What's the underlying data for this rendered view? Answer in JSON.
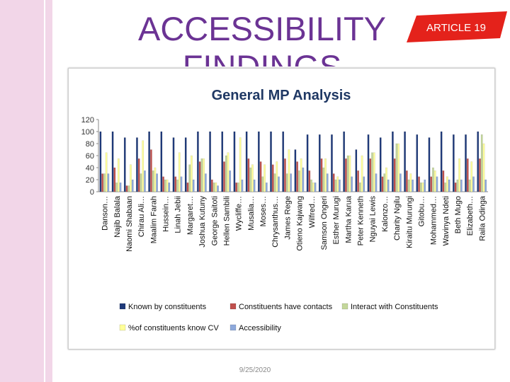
{
  "slide": {
    "title": "ACCESSIBILITY FINDINGS",
    "logo_text": "ARTICLE 19",
    "footer_date": "9/25/2020"
  },
  "colors": {
    "title": "#6b3394",
    "left_strip": "#f2d6e8",
    "logo": "#e4221b"
  },
  "chart_data": {
    "type": "bar",
    "title": "General MP Analysis",
    "ylim": [
      0,
      120
    ],
    "yticks": [
      0,
      20,
      40,
      60,
      80,
      100,
      120
    ],
    "categories": [
      "Danson…",
      "Najib Balala",
      "Naomi Shabaan",
      "Chirau Ali…",
      "Maalim Farah",
      "Hussein…",
      "Linah Jebii",
      "Margaret…",
      "Joshua Kutuny",
      "George Saitoti",
      "Hellen Sambili",
      "Wycliffe…",
      "Musalia…",
      "Moses…",
      "Chrysanthus…",
      "James Rege",
      "Otieno Kajwang",
      "Wilfred…",
      "Samson Ongeri",
      "Esther Murugi",
      "Martha Karua",
      "Peter Kenneth",
      "Nguyai Lewis",
      "Kalonzo…",
      "Charity Ngilu",
      "Kiraitu Murungi",
      "Gitobu…",
      "Mohammed…",
      "Wavinya Ndeti",
      "Beth Mugo",
      "Elizabeth…",
      "Raila Odinga"
    ],
    "series": [
      {
        "name": "Known by constituents",
        "color": "#1f3a7a",
        "values": [
          100,
          100,
          90,
          90,
          100,
          100,
          90,
          90,
          100,
          100,
          100,
          100,
          100,
          100,
          100,
          100,
          70,
          95,
          95,
          95,
          100,
          70,
          95,
          90,
          100,
          100,
          95,
          90,
          100,
          95,
          95,
          100
        ]
      },
      {
        "name": "Constituents have contacts",
        "color": "#c0504d",
        "values": [
          30,
          40,
          10,
          55,
          70,
          25,
          25,
          15,
          50,
          20,
          50,
          15,
          55,
          50,
          45,
          55,
          50,
          35,
          55,
          30,
          55,
          35,
          55,
          25,
          55,
          35,
          25,
          25,
          35,
          15,
          55,
          55
        ]
      },
      {
        "name": "Interact with Constituents",
        "color": "#c4d79b",
        "values": [
          30,
          15,
          10,
          30,
          35,
          20,
          20,
          45,
          55,
          15,
          60,
          15,
          40,
          25,
          30,
          30,
          35,
          20,
          40,
          20,
          60,
          15,
          65,
          30,
          80,
          20,
          15,
          40,
          15,
          20,
          20,
          95
        ]
      },
      {
        "name": "%of constituents know CV",
        "color": "#ffff99",
        "values": [
          65,
          55,
          45,
          85,
          40,
          20,
          65,
          60,
          55,
          15,
          65,
          90,
          45,
          45,
          50,
          70,
          55,
          15,
          55,
          25,
          60,
          60,
          65,
          40,
          80,
          30,
          15,
          35,
          25,
          55,
          50,
          80
        ]
      },
      {
        "name": "Accessibility",
        "color": "#8ea9db",
        "values": [
          30,
          15,
          20,
          35,
          30,
          15,
          25,
          20,
          30,
          10,
          35,
          20,
          20,
          15,
          25,
          30,
          40,
          15,
          30,
          20,
          25,
          25,
          30,
          20,
          30,
          20,
          20,
          25,
          20,
          20,
          25,
          20
        ]
      }
    ],
    "legend_position": "bottom",
    "grid": false
  }
}
